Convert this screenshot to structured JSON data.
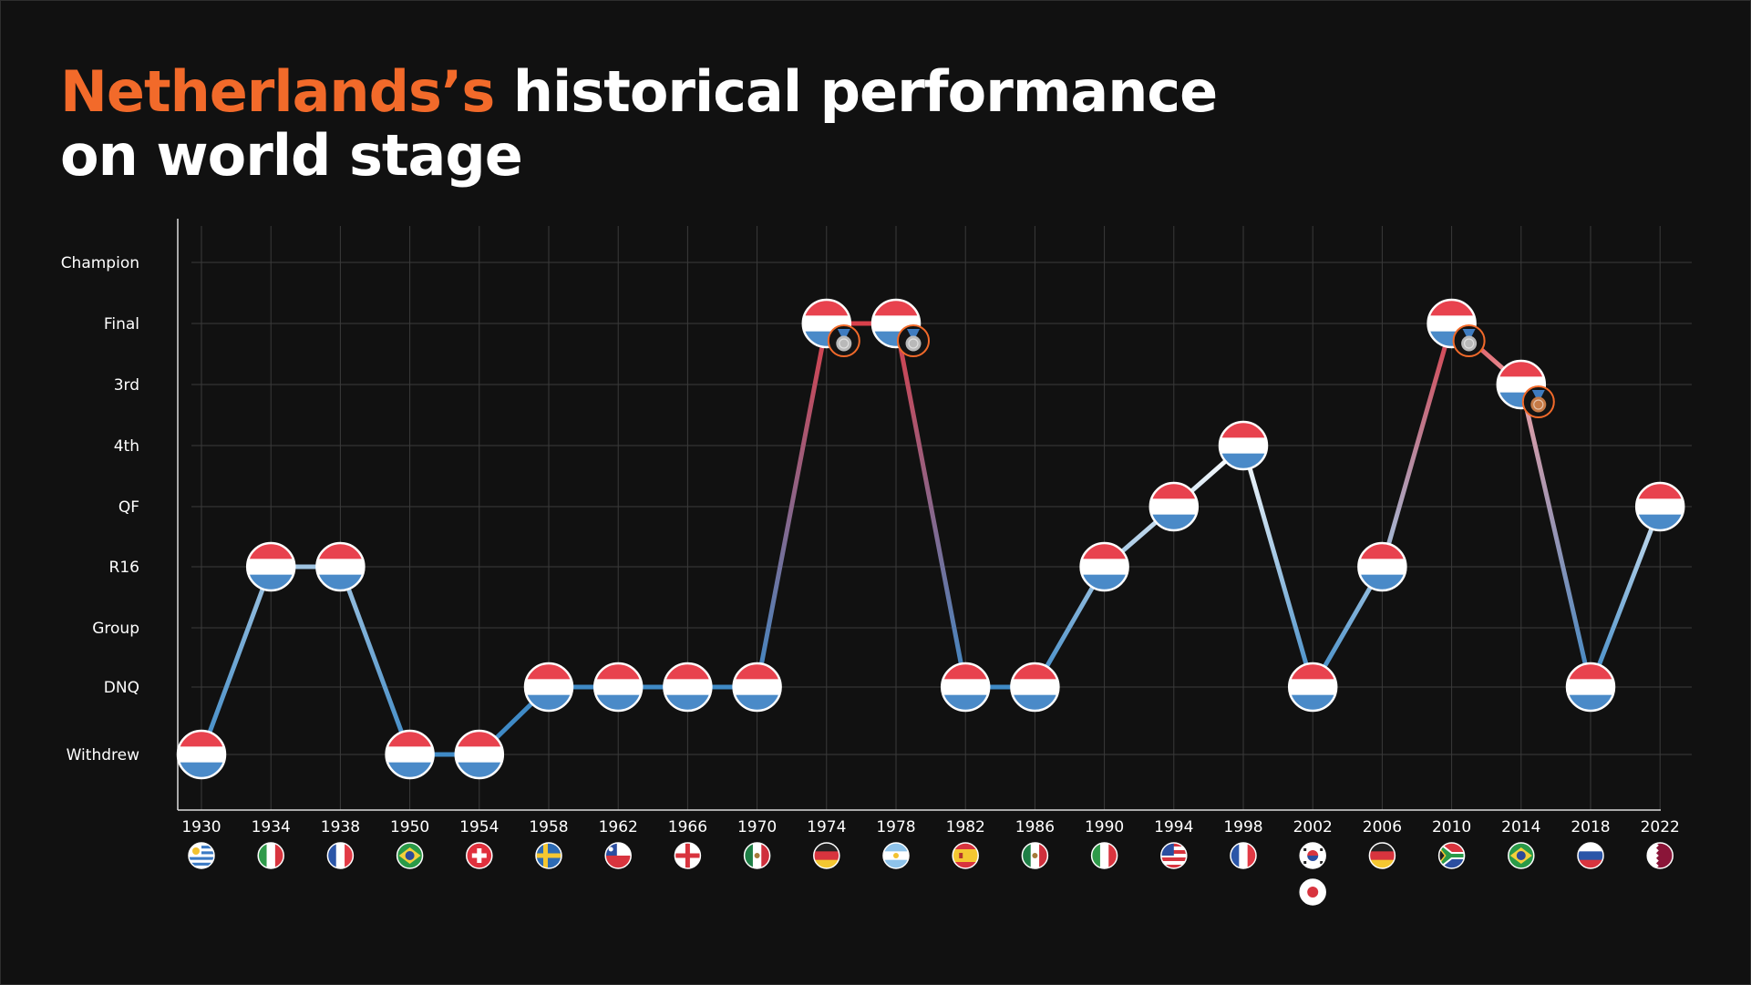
{
  "title": {
    "highlight": "Netherlands’s",
    "line1_rest": " historical performance",
    "line2": "on world stage"
  },
  "colors": {
    "background": "#111111",
    "highlight": "#f26a2a",
    "line_low": "#3f8ac6",
    "line_mid": "#ffffff",
    "line_high": "#d9404b",
    "flag_red": "#e8424e",
    "flag_white": "#ffffff",
    "flag_blue": "#4a8ac8",
    "silver_medal": "#b9b9b9",
    "bronze_medal": "#c67a46"
  },
  "chart_data": {
    "type": "line",
    "title": "Netherlands’s historical performance on world stage",
    "xlabel": "",
    "ylabel": "",
    "y_categories": [
      "Withdrew",
      "DNQ",
      "Group",
      "R16",
      "QF",
      "4th",
      "3rd",
      "Final",
      "Champion"
    ],
    "x": [
      "1930",
      "1934",
      "1938",
      "1950",
      "1954",
      "1958",
      "1962",
      "1966",
      "1970",
      "1974",
      "1978",
      "1982",
      "1986",
      "1990",
      "1994",
      "1998",
      "2002",
      "2006",
      "2010",
      "2014",
      "2018",
      "2022"
    ],
    "values": [
      "Withdrew",
      "R16",
      "R16",
      "Withdrew",
      "Withdrew",
      "DNQ",
      "DNQ",
      "DNQ",
      "DNQ",
      "Final",
      "Final",
      "DNQ",
      "DNQ",
      "R16",
      "QF",
      "4th",
      "DNQ",
      "R16",
      "Final",
      "3rd",
      "DNQ",
      "QF"
    ],
    "medals": [
      {
        "year": "1974",
        "medal": "silver"
      },
      {
        "year": "1978",
        "medal": "silver"
      },
      {
        "year": "2010",
        "medal": "silver"
      },
      {
        "year": "2014",
        "medal": "bronze"
      }
    ],
    "hosts": [
      [
        "uruguay-flag-icon"
      ],
      [
        "italy-flag-icon"
      ],
      [
        "france-flag-icon"
      ],
      [
        "brazil-flag-icon"
      ],
      [
        "switzerland-flag-icon"
      ],
      [
        "sweden-flag-icon"
      ],
      [
        "chile-flag-icon"
      ],
      [
        "england-flag-icon"
      ],
      [
        "mexico-flag-icon"
      ],
      [
        "germany-flag-icon"
      ],
      [
        "argentina-flag-icon"
      ],
      [
        "spain-flag-icon"
      ],
      [
        "mexico-flag-icon"
      ],
      [
        "italy-flag-icon"
      ],
      [
        "usa-flag-icon"
      ],
      [
        "france-flag-icon"
      ],
      [
        "south-korea-flag-icon",
        "japan-flag-icon"
      ],
      [
        "germany-flag-icon"
      ],
      [
        "south-africa-flag-icon"
      ],
      [
        "brazil-flag-icon"
      ],
      [
        "russia-flag-icon"
      ],
      [
        "qatar-flag-icon"
      ]
    ],
    "grid": true,
    "legend": "none"
  }
}
